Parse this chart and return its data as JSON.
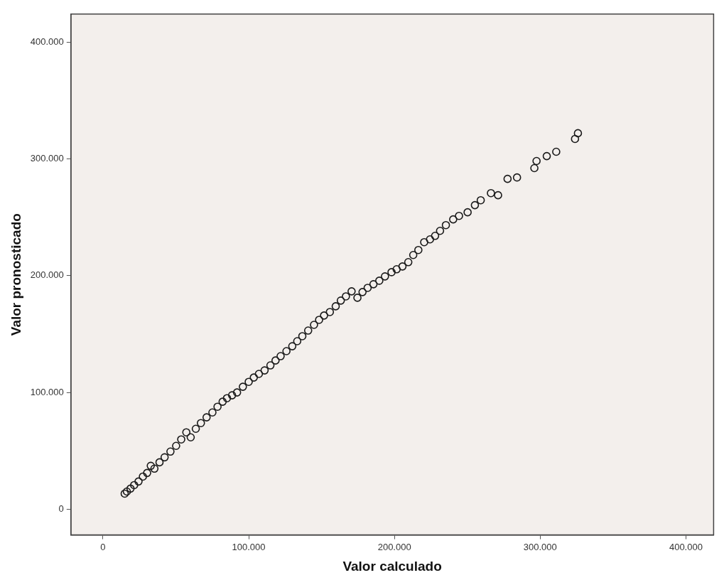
{
  "chart_data": {
    "type": "scatter",
    "xlabel": "Valor calculado",
    "ylabel": "Valor pronosticado",
    "xlim": [
      -22000,
      419000
    ],
    "ylim": [
      -22000,
      424000
    ],
    "xticks": [
      {
        "value": 0,
        "label": "0"
      },
      {
        "value": 100000,
        "label": "100.000"
      },
      {
        "value": 200000,
        "label": "200.000"
      },
      {
        "value": 300000,
        "label": "300.000"
      },
      {
        "value": 400000,
        "label": "400.000"
      }
    ],
    "yticks": [
      {
        "value": 0,
        "label": "0"
      },
      {
        "value": 100000,
        "label": "100.000"
      },
      {
        "value": 200000,
        "label": "200.000"
      },
      {
        "value": 300000,
        "label": "300.000"
      },
      {
        "value": 400000,
        "label": "400.000"
      }
    ],
    "grid": false,
    "legend": false,
    "marker": "circle",
    "series": [
      {
        "color": "#1a1a1a",
        "x": [
          14900,
          16400,
          18900,
          21400,
          24400,
          27400,
          30300,
          32800,
          35300,
          38800,
          42300,
          46300,
          50200,
          53700,
          57200,
          60200,
          63700,
          67200,
          71100,
          75100,
          78600,
          82100,
          85100,
          88600,
          92000,
          96000,
          100000,
          103500,
          107000,
          110900,
          114900,
          118400,
          121900,
          125900,
          129900,
          133300,
          136800,
          140800,
          144800,
          148300,
          151700,
          155700,
          159700,
          163200,
          166700,
          170600,
          174600,
          178100,
          181600,
          185600,
          189600,
          193500,
          198000,
          201500,
          205500,
          209500,
          212900,
          216400,
          220400,
          224400,
          227900,
          231300,
          235300,
          240300,
          244300,
          250200,
          255200,
          259200,
          266200,
          271100,
          277600,
          284100,
          296000,
          297500,
          304500,
          311000,
          323900,
          325900
        ],
        "values": [
          13400,
          15200,
          17700,
          20700,
          23800,
          28000,
          31100,
          37200,
          34800,
          40200,
          44500,
          49400,
          54300,
          59800,
          65900,
          61600,
          68900,
          73800,
          78700,
          82900,
          87800,
          92100,
          95100,
          97600,
          100000,
          104900,
          109100,
          112800,
          115900,
          118900,
          123200,
          127400,
          131100,
          135400,
          139600,
          143900,
          148200,
          153000,
          157900,
          162200,
          165900,
          168900,
          173800,
          178700,
          182300,
          186600,
          181100,
          186000,
          189600,
          192700,
          195700,
          199400,
          203000,
          205500,
          207900,
          211600,
          217700,
          222000,
          228700,
          231100,
          234100,
          238400,
          243300,
          248200,
          251200,
          254300,
          260400,
          264600,
          270700,
          268900,
          282900,
          284100,
          292100,
          298200,
          302400,
          306100,
          317100,
          322000
        ]
      }
    ]
  }
}
